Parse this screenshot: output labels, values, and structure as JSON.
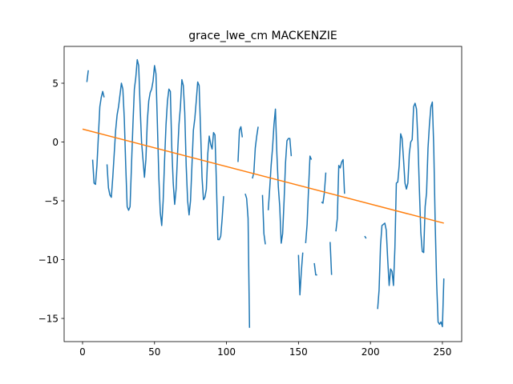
{
  "chart_data": {
    "type": "line",
    "title": "grace_lwe_cm MACKENZIE",
    "xlim": [
      -12.8,
      263.4
    ],
    "ylim": [
      -16.97,
      8.13
    ],
    "xticks": [
      0,
      50,
      100,
      150,
      200,
      250
    ],
    "yticks": [
      {
        "value": -15,
        "label": "−15"
      },
      {
        "value": -10,
        "label": "−10"
      },
      {
        "value": -5,
        "label": "−5"
      },
      0,
      5
    ],
    "series": [
      {
        "color": "#1f77b4",
        "x": [
          3,
          4,
          5,
          7,
          8,
          9,
          10,
          11,
          12,
          13,
          14,
          15,
          16,
          17,
          18,
          19,
          20,
          21,
          22,
          23,
          24,
          25,
          26,
          27,
          28,
          29,
          30,
          31,
          32,
          33,
          34,
          35,
          36,
          37,
          38,
          39,
          40,
          41,
          42,
          43,
          44,
          45,
          46,
          47,
          48,
          49,
          50,
          51,
          52,
          53,
          54,
          55,
          56,
          57,
          58,
          59,
          60,
          61,
          62,
          63,
          64,
          65,
          66,
          67,
          68,
          69,
          70,
          71,
          72,
          73,
          74,
          75,
          76,
          77,
          78,
          79,
          80,
          81,
          82,
          83,
          84,
          85,
          86,
          87,
          88,
          89,
          90,
          91,
          92,
          93,
          94,
          95,
          96,
          97,
          98,
          99,
          108,
          109,
          110,
          111,
          112,
          113,
          114,
          115,
          116,
          117,
          118,
          119,
          120,
          121,
          122,
          123,
          125,
          126,
          127,
          128,
          129,
          130,
          131,
          132,
          133,
          134,
          135,
          136,
          137,
          138,
          139,
          140,
          141,
          142,
          143,
          144,
          145,
          146,
          150,
          151,
          152,
          153,
          154,
          155,
          156,
          157,
          158,
          159,
          160,
          161,
          162,
          163,
          164,
          166,
          167,
          168,
          169,
          170,
          172,
          173,
          174,
          176,
          177,
          178,
          179,
          180,
          181,
          182,
          183,
          196,
          197,
          198,
          205,
          206,
          207,
          208,
          209,
          210,
          211,
          212,
          213,
          214,
          215,
          216,
          217,
          218,
          219,
          220,
          221,
          222,
          223,
          224,
          225,
          226,
          227,
          228,
          229,
          230,
          231,
          232,
          233,
          234,
          235,
          236,
          237,
          238,
          239,
          240,
          241,
          242,
          243,
          244,
          245,
          246,
          247,
          248,
          249,
          250,
          251
        ],
        "values": [
          5.1,
          6.1,
          null,
          -1.5,
          -3.5,
          -3.6,
          -2,
          0.5,
          3,
          3.8,
          4.3,
          3.8,
          null,
          -1.9,
          -3.9,
          -4.5,
          -4.7,
          -3,
          -1,
          1,
          2.3,
          3,
          4,
          5,
          4.5,
          2,
          -2,
          -5.5,
          -5.8,
          -5.5,
          -2,
          1.5,
          4.5,
          5.5,
          7,
          6.5,
          3,
          0,
          -1.5,
          -3,
          -1.5,
          1.8,
          3.5,
          4.2,
          4.5,
          5.2,
          6.5,
          5.8,
          1.5,
          -3,
          -6,
          -7.1,
          -5,
          -1.5,
          1.5,
          3.5,
          4.5,
          4.3,
          -0.5,
          -3.5,
          -5.3,
          -4,
          -1,
          1.5,
          3,
          5.3,
          4.8,
          2.5,
          -2,
          -5,
          -6.2,
          -5,
          -2,
          1,
          2,
          3.5,
          5.1,
          4.8,
          1,
          -3,
          -4.9,
          -4.7,
          -4,
          -1,
          0.5,
          -0.2,
          -0.6,
          0.8,
          0.6,
          -3.5,
          -8.3,
          -8.3,
          -8,
          -6.5,
          -4.6,
          null,
          -1.7,
          1.0,
          1.3,
          0.4,
          null,
          -4.4,
          -4.8,
          -6.5,
          -15.8,
          null,
          -3.1,
          -2.6,
          -0.5,
          0.5,
          1.3,
          null,
          -4.5,
          -7.8,
          -8.7,
          null,
          -5.8,
          -4,
          -2,
          -0.5,
          1.5,
          2.8,
          -1,
          -3.8,
          -5.5,
          -8.6,
          -7.8,
          -5,
          -1.8,
          0.1,
          0.3,
          0.3,
          -1.2,
          null,
          -9.6,
          -13,
          -11,
          -9.4,
          null,
          -8.6,
          -7,
          -4,
          -1.2,
          -1.5,
          null,
          -10.3,
          -11.3,
          -11.3,
          null,
          -5.1,
          -5.2,
          -4.3,
          -2.6,
          null,
          -8.5,
          -11.3,
          null,
          -7.6,
          -6.5,
          -2,
          -2.2,
          -1.7,
          -1.5,
          -4.4,
          null,
          -8,
          -8.2,
          null,
          -14.2,
          -12.6,
          -8.8,
          -7.1,
          -7,
          -6.9,
          -7.5,
          -10,
          -12.2,
          -10.8,
          -11,
          -12.2,
          -9,
          -3.5,
          -3.4,
          -2,
          0.7,
          0.3,
          -1.5,
          -3.5,
          -4,
          -3.5,
          -1,
          0,
          0.2,
          3,
          3.3,
          2.8,
          0,
          -4,
          -7.7,
          -9.3,
          -9.4,
          -5.5,
          -4.3,
          -0.5,
          1.5,
          3,
          3.4,
          -0.5,
          -7,
          -12,
          -15.3,
          -15.5,
          -15.3,
          -15.7,
          -11.6
        ]
      },
      {
        "color": "#ff7f0e",
        "x": [
          0,
          251
        ],
        "values": [
          1.1,
          -6.9
        ]
      }
    ]
  }
}
